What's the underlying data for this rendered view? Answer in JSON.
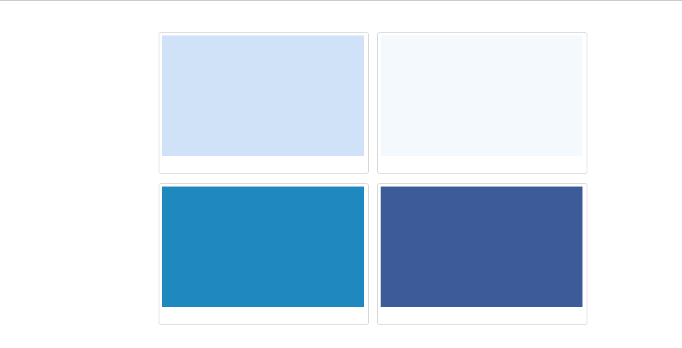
{
  "swatches": [
    {
      "color": "#cfe2f7"
    },
    {
      "color": "#f4f9fe"
    },
    {
      "color": "#1f88bf"
    },
    {
      "color": "#3c5b98"
    }
  ]
}
